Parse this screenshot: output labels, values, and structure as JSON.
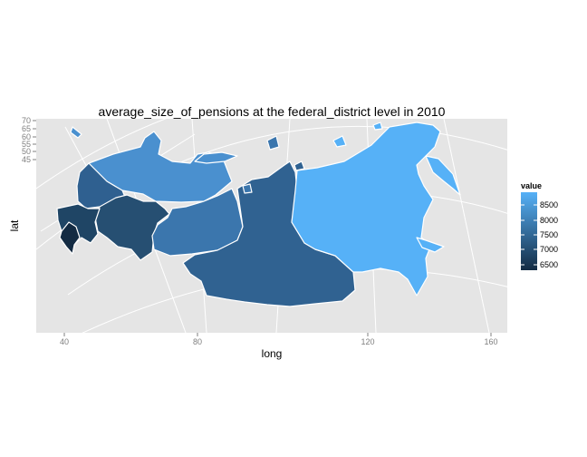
{
  "title": "average_size_of_pensions at the federal_district level in 2010",
  "x_axis": {
    "label": "long",
    "ticks": [
      "40",
      "80",
      "120",
      "160"
    ]
  },
  "y_axis": {
    "label": "lat",
    "ticks": [
      "70",
      "65",
      "60",
      "55",
      "50",
      "45"
    ]
  },
  "legend": {
    "title": "value",
    "labels": [
      "8500",
      "8000",
      "7500",
      "7000",
      "6500"
    ],
    "color_low": "#132B43",
    "color_high": "#56B1F7"
  },
  "chart_data": {
    "type": "choropleth",
    "variable": "average_size_of_pensions",
    "level": "federal_district",
    "year": 2010,
    "regions": [
      {
        "id": "north-caucasian",
        "value": 6500,
        "color": "#132B43"
      },
      {
        "id": "southern",
        "value": 7050,
        "color": "#1F4565"
      },
      {
        "id": "volga",
        "value": 7250,
        "color": "#264F72"
      },
      {
        "id": "central",
        "value": 7600,
        "color": "#2F6090"
      },
      {
        "id": "siberian",
        "value": 7650,
        "color": "#306291"
      },
      {
        "id": "ural",
        "value": 8000,
        "color": "#3B76AD"
      },
      {
        "id": "northwestern",
        "value": 8400,
        "color": "#4A90CF"
      },
      {
        "id": "far-eastern",
        "value": 8800,
        "color": "#56B1F7"
      }
    ]
  }
}
